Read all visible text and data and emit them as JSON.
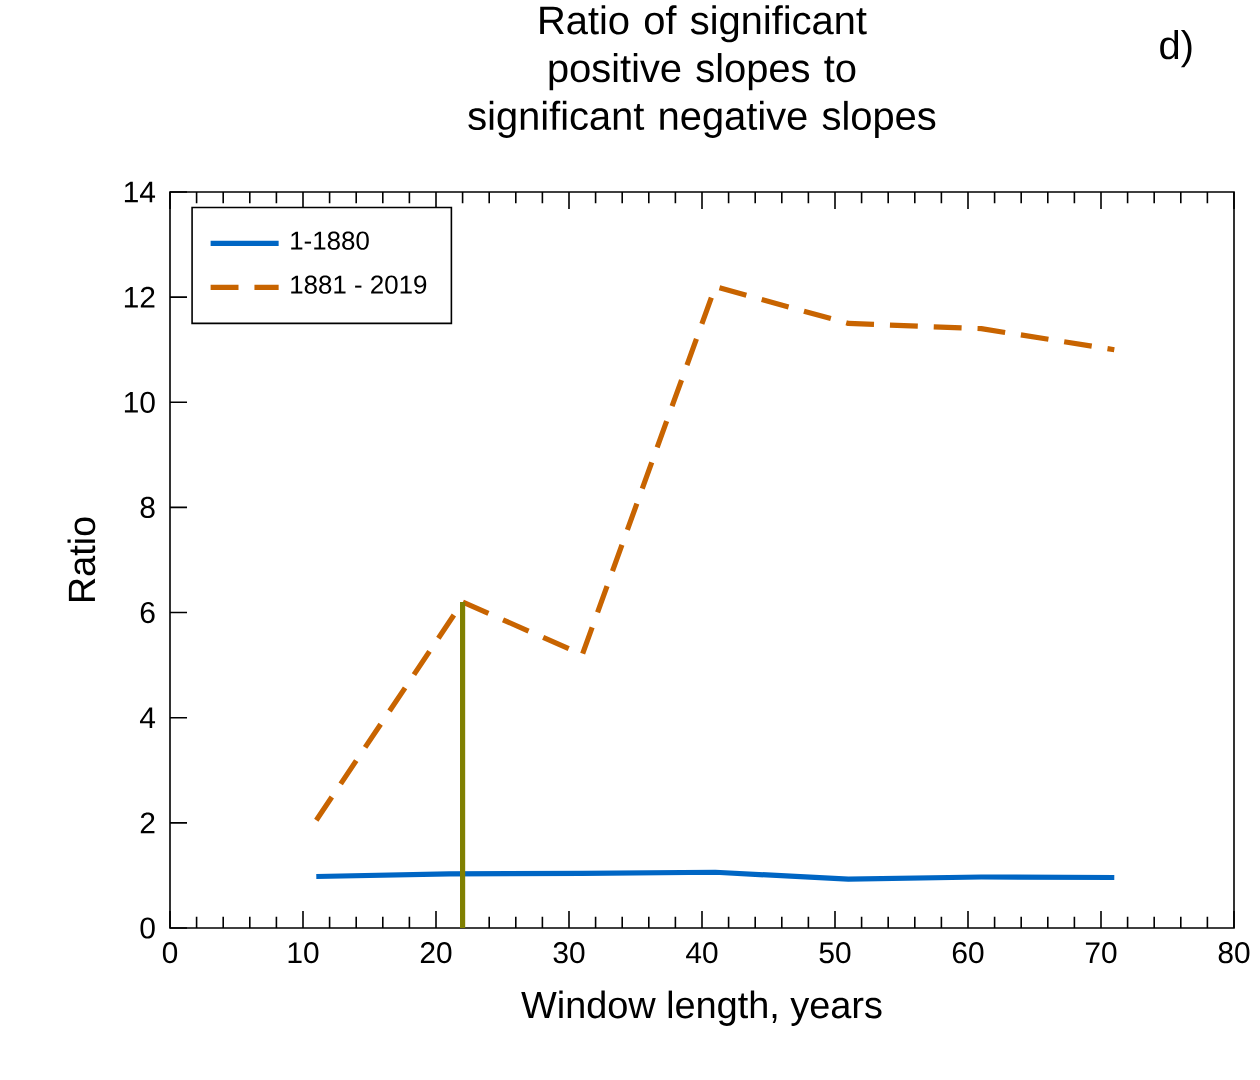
{
  "chart_data": {
    "type": "line",
    "title": "Ratio of significant positive slopes to significant negative slopes",
    "xlabel": "Window length, years",
    "ylabel": "Ratio",
    "annotations": [
      "d)"
    ],
    "xlim": [
      0,
      80
    ],
    "xticks": [
      0,
      10,
      20,
      30,
      40,
      50,
      60,
      70,
      80
    ],
    "ylim": [
      0,
      14
    ],
    "yticks": [
      0,
      2,
      4,
      6,
      8,
      10,
      12,
      14
    ],
    "legend": "top left",
    "grid": false,
    "series": [
      {
        "name": "1-1880",
        "color": "#0066c4",
        "line_style": "solid",
        "x": [
          11,
          21,
          31,
          41,
          51,
          61,
          71
        ],
        "values": [
          0.98,
          1.03,
          1.04,
          1.06,
          0.93,
          0.97,
          0.96
        ]
      },
      {
        "name": "1881 - 2019",
        "color": "#c86400",
        "line_style": "dashed",
        "x": [
          11,
          22,
          31,
          41,
          51,
          61,
          71
        ],
        "values": [
          2.05,
          6.2,
          5.2,
          12.2,
          11.5,
          11.4,
          11.0
        ]
      },
      {
        "color": "#808000",
        "line_style": "solid",
        "x": [
          22,
          22
        ],
        "values": [
          0,
          6.2
        ]
      }
    ]
  }
}
